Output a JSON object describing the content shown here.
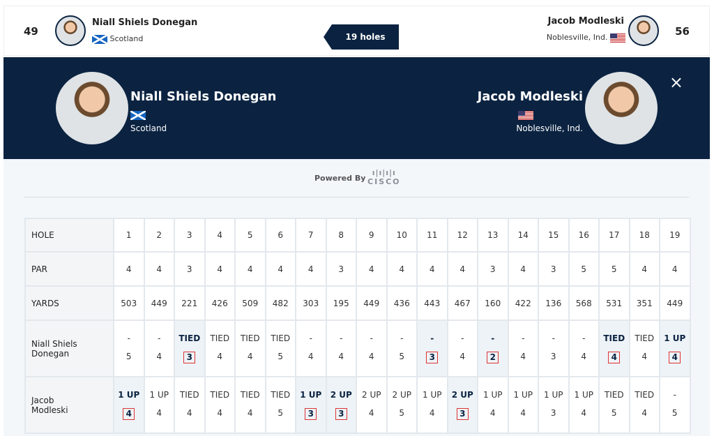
{
  "header": {
    "holes_label": "19 holes",
    "left": {
      "score": "49",
      "name": "Niall Shiels Donegan",
      "location": "Scotland"
    },
    "right": {
      "score": "56",
      "name": "Jacob Modleski",
      "location": "Noblesville, Ind."
    }
  },
  "banner": {
    "left": {
      "name": "Niall Shiels Donegan",
      "location": "Scotland"
    },
    "right": {
      "name": "Jacob Modleski",
      "location": "Noblesville, Ind."
    },
    "close_icon": "×"
  },
  "powered": {
    "label": "Powered By",
    "logo": "CISCO"
  },
  "colors": {
    "navy": "#0b2341",
    "win_box": "#d33333"
  },
  "table": {
    "hole_label": "HOLE",
    "par_label": "PAR",
    "yards_label": "YARDS",
    "holes": [
      "1",
      "2",
      "3",
      "4",
      "5",
      "6",
      "7",
      "8",
      "9",
      "10",
      "11",
      "12",
      "13",
      "14",
      "15",
      "16",
      "17",
      "18",
      "19"
    ],
    "par": [
      "4",
      "4",
      "3",
      "4",
      "4",
      "4",
      "4",
      "3",
      "4",
      "4",
      "4",
      "4",
      "3",
      "4",
      "3",
      "5",
      "5",
      "4",
      "4"
    ],
    "yards": [
      "503",
      "449",
      "221",
      "426",
      "509",
      "482",
      "303",
      "195",
      "449",
      "436",
      "443",
      "467",
      "160",
      "422",
      "136",
      "568",
      "531",
      "351",
      "449"
    ],
    "players": [
      {
        "name": "Niall Shiels Donegan",
        "status": [
          "-",
          "-",
          "TIED",
          "TIED",
          "TIED",
          "TIED",
          "-",
          "-",
          "-",
          "-",
          "-",
          "-",
          "-",
          "-",
          "-",
          "-",
          "TIED",
          "TIED",
          "1 UP"
        ],
        "scores": [
          "5",
          "4",
          "3",
          "4",
          "4",
          "5",
          "4",
          "4",
          "4",
          "5",
          "3",
          "4",
          "2",
          "4",
          "3",
          "4",
          "4",
          "4",
          "4"
        ],
        "won": [
          3,
          11,
          13,
          17,
          19
        ]
      },
      {
        "name": "Jacob Modleski",
        "status": [
          "1 UP",
          "1 UP",
          "TIED",
          "TIED",
          "TIED",
          "TIED",
          "1 UP",
          "2 UP",
          "2 UP",
          "2 UP",
          "1 UP",
          "2 UP",
          "1 UP",
          "1 UP",
          "1 UP",
          "1 UP",
          "TIED",
          "TIED",
          "-"
        ],
        "scores": [
          "4",
          "4",
          "4",
          "4",
          "4",
          "5",
          "3",
          "3",
          "4",
          "5",
          "4",
          "3",
          "4",
          "4",
          "3",
          "4",
          "5",
          "4",
          "5"
        ],
        "won": [
          1,
          7,
          8,
          12
        ]
      }
    ]
  }
}
